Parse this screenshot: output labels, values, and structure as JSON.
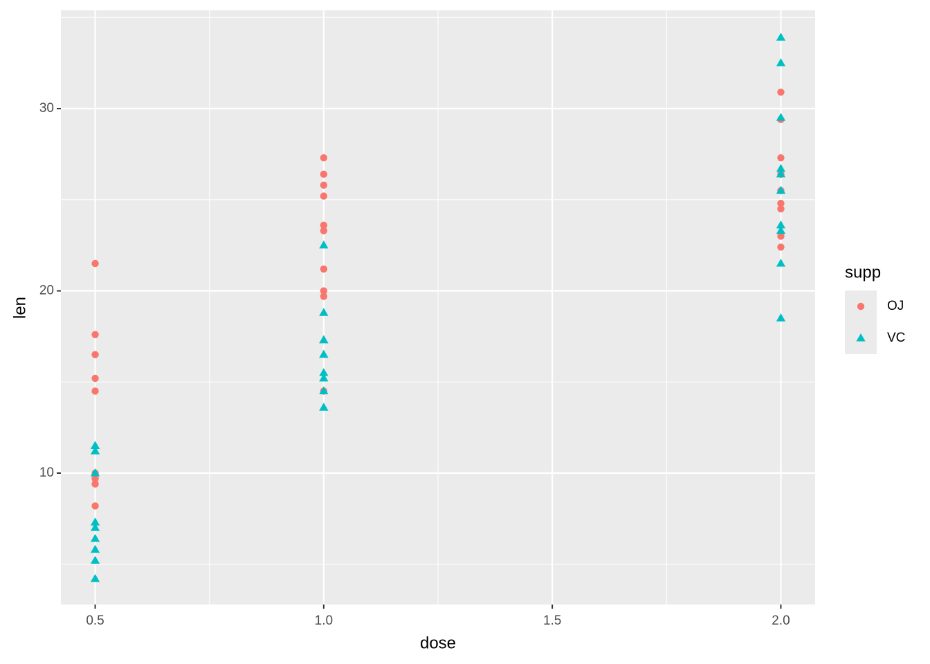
{
  "chart_data": {
    "type": "scatter",
    "x_label": "dose",
    "y_label": "len",
    "xlim": [
      0.425,
      2.075
    ],
    "ylim": [
      2.79,
      35.39
    ],
    "xticks": [
      0.5,
      {
        "value": 1,
        "label": "1.0"
      },
      1.5,
      {
        "value": 2,
        "label": "2.0"
      }
    ],
    "yticks": [
      10,
      20,
      30
    ],
    "xminor": [
      0.75,
      1.25,
      1.75
    ],
    "yminor": [
      5,
      15,
      25,
      35
    ],
    "grid": true,
    "legend_title": "supp",
    "legend_position": "right",
    "series": [
      {
        "name": "OJ",
        "color": "#F8766D",
        "marker": "circle",
        "x": [
          0.5,
          0.5,
          0.5,
          0.5,
          0.5,
          0.5,
          0.5,
          0.5,
          0.5,
          0.5,
          1,
          1,
          1,
          1,
          1,
          1,
          1,
          1,
          1,
          1,
          2,
          2,
          2,
          2,
          2,
          2,
          2,
          2,
          2,
          2
        ],
        "y": [
          15.2,
          21.5,
          17.6,
          9.7,
          14.5,
          10,
          8.2,
          9.4,
          16.5,
          9.7,
          19.7,
          23.3,
          23.6,
          26.4,
          20,
          25.2,
          25.8,
          21.2,
          14.5,
          27.3,
          25.5,
          26.4,
          22.4,
          24.5,
          24.8,
          30.9,
          26.4,
          27.3,
          29.4,
          23
        ]
      },
      {
        "name": "VC",
        "color": "#00BFC4",
        "marker": "triangle",
        "x": [
          0.5,
          0.5,
          0.5,
          0.5,
          0.5,
          0.5,
          0.5,
          0.5,
          0.5,
          0.5,
          1,
          1,
          1,
          1,
          1,
          1,
          1,
          1,
          1,
          1,
          2,
          2,
          2,
          2,
          2,
          2,
          2,
          2,
          2,
          2
        ],
        "y": [
          4.2,
          11.5,
          7.3,
          5.8,
          6.4,
          10,
          11.2,
          11.2,
          5.2,
          7,
          16.5,
          16.5,
          15.2,
          17.3,
          22.5,
          17.3,
          13.6,
          14.5,
          18.8,
          15.5,
          23.6,
          18.5,
          33.9,
          25.5,
          26.4,
          32.5,
          26.7,
          21.5,
          23.3,
          29.5
        ]
      }
    ]
  }
}
